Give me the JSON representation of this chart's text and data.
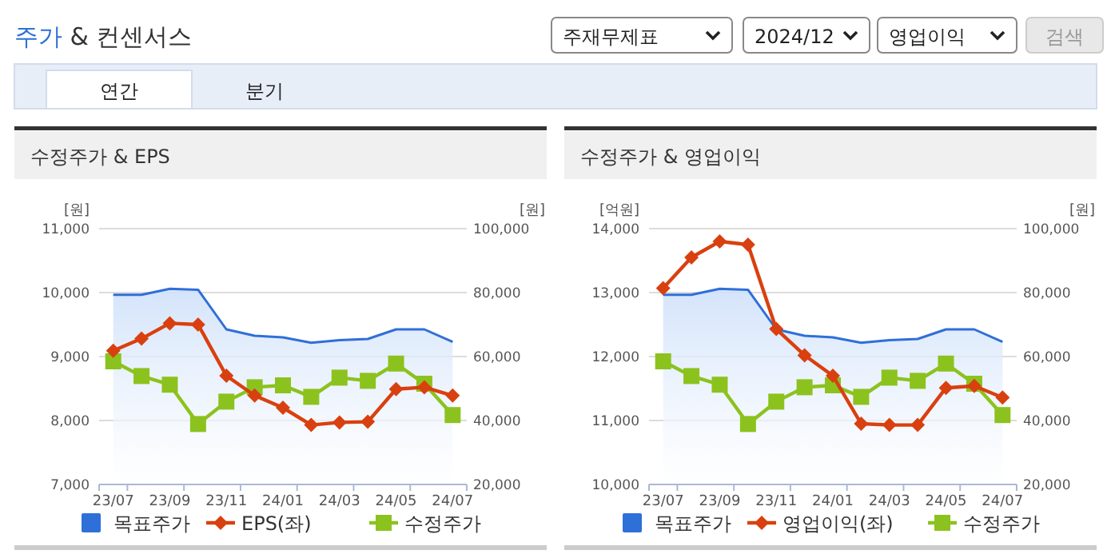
{
  "chart_data": [
    {
      "type": "other",
      "title": "주가 & 컨센서스",
      "annotations": [
        "주재무제표",
        "2024/12",
        "영업이익",
        "검색",
        "연간",
        "분기"
      ]
    },
    {
      "type": "line",
      "title": "수정주가 & EPS",
      "ylabel": "[원]",
      "y2label": "[원]",
      "categories": [
        "23/07",
        null,
        "23/09",
        null,
        "23/11",
        null,
        "24/01",
        null,
        "24/03",
        null,
        "24/05",
        null,
        "24/07"
      ],
      "ylim": [
        7000,
        11000
      ],
      "yticks": [
        {
          "value": 7000,
          "label": "7,000"
        },
        {
          "value": 8000,
          "label": "8,000"
        },
        {
          "value": 9000,
          "label": "9,000"
        },
        {
          "value": 10000,
          "label": "10,000"
        },
        {
          "value": 11000,
          "label": "11,000"
        }
      ],
      "y2lim": [
        20000,
        100000
      ],
      "y2ticks": [
        {
          "value": 20000,
          "label": "20,000"
        },
        {
          "value": 40000,
          "label": "40,000"
        },
        {
          "value": 60000,
          "label": "60,000"
        },
        {
          "value": 80000,
          "label": "80,000"
        },
        {
          "value": 100000,
          "label": "100,000"
        }
      ],
      "grid": "y",
      "legend": "bottom",
      "series": [
        {
          "name": "목표주가",
          "type": "area",
          "axis": "y2",
          "color": "#2f6fd8",
          "marker": "none",
          "values": [
            79300,
            79300,
            81200,
            80900,
            68500,
            66500,
            66000,
            64300,
            65100,
            65500,
            68500,
            68500,
            64600
          ]
        },
        {
          "name": "EPS(좌)",
          "type": "line",
          "color": "#d9400f",
          "marker": "diamond",
          "values": [
            9090,
            9280,
            9520,
            9500,
            8700,
            8390,
            8200,
            7930,
            7970,
            7980,
            8490,
            8520,
            8390
          ]
        },
        {
          "name": "수정주가",
          "type": "line",
          "axis": "y2",
          "color": "#8cc21e",
          "marker": "square",
          "values": [
            58500,
            53900,
            51200,
            38900,
            45900,
            50400,
            51000,
            47400,
            53400,
            52400,
            57800,
            51500,
            41700
          ]
        }
      ]
    },
    {
      "type": "line",
      "title": "수정주가 & 영업이익",
      "ylabel": "[억원]",
      "y2label": "[원]",
      "categories": [
        "23/07",
        null,
        "23/09",
        null,
        "23/11",
        null,
        "24/01",
        null,
        "24/03",
        null,
        "24/05",
        null,
        "24/07"
      ],
      "ylim": [
        10000,
        14000
      ],
      "yticks": [
        {
          "value": 10000,
          "label": "10,000"
        },
        {
          "value": 11000,
          "label": "11,000"
        },
        {
          "value": 12000,
          "label": "12,000"
        },
        {
          "value": 13000,
          "label": "13,000"
        },
        {
          "value": 14000,
          "label": "14,000"
        }
      ],
      "y2lim": [
        20000,
        100000
      ],
      "y2ticks": [
        {
          "value": 20000,
          "label": "20,000"
        },
        {
          "value": 40000,
          "label": "40,000"
        },
        {
          "value": 60000,
          "label": "60,000"
        },
        {
          "value": 80000,
          "label": "80,000"
        },
        {
          "value": 100000,
          "label": "100,000"
        }
      ],
      "grid": "y",
      "legend": "bottom",
      "series": [
        {
          "name": "목표주가",
          "type": "area",
          "axis": "y2",
          "color": "#2f6fd8",
          "marker": "none",
          "values": [
            79300,
            79300,
            81200,
            80900,
            68500,
            66500,
            66000,
            64300,
            65100,
            65500,
            68500,
            68500,
            64600
          ]
        },
        {
          "name": "영업이익(좌)",
          "type": "line",
          "color": "#d9400f",
          "marker": "diamond",
          "values": [
            13070,
            13550,
            13800,
            13750,
            12430,
            12020,
            11700,
            10950,
            10930,
            10930,
            11510,
            11540,
            11360
          ]
        },
        {
          "name": "수정주가",
          "type": "line",
          "axis": "y2",
          "color": "#8cc21e",
          "marker": "square",
          "values": [
            58500,
            53900,
            51200,
            38900,
            45900,
            50400,
            51000,
            47400,
            53400,
            52400,
            57800,
            51500,
            41700
          ]
        }
      ]
    }
  ]
}
